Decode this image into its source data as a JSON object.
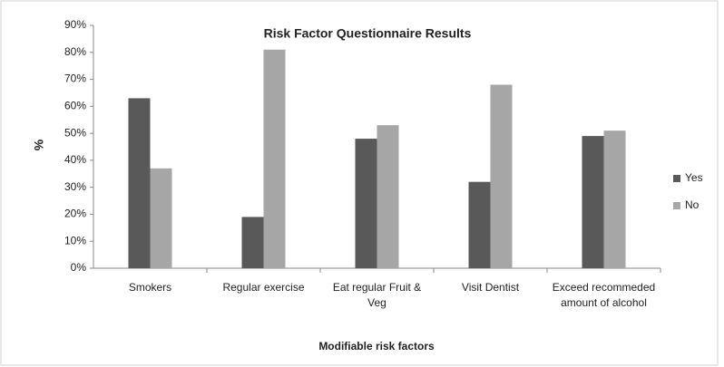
{
  "chart_data": {
    "type": "bar",
    "title": "Risk Factor Questionnaire Results",
    "x_label": "Modifiable risk factors",
    "y_label": "%",
    "categories": [
      "Smokers",
      "Regular exercise",
      "Eat regular Fruit & Veg",
      "Visit Dentist",
      "Exceed recommeded amount of alcohol"
    ],
    "series": [
      {
        "name": "Yes",
        "color": "#595959",
        "values": [
          63,
          19,
          48,
          32,
          49
        ]
      },
      {
        "name": "No",
        "color": "#a6a6a6",
        "values": [
          37,
          81,
          53,
          68,
          51
        ]
      }
    ],
    "ylim": [
      0,
      90
    ],
    "yticks": [
      {
        "value": 0,
        "label": "0%"
      },
      {
        "value": 10,
        "label": "10%"
      },
      {
        "value": 20,
        "label": "20%"
      },
      {
        "value": 30,
        "label": "30%"
      },
      {
        "value": 40,
        "label": "40%"
      },
      {
        "value": 50,
        "label": "50%"
      },
      {
        "value": 60,
        "label": "60%"
      },
      {
        "value": 70,
        "label": "70%"
      },
      {
        "value": 80,
        "label": "80%"
      },
      {
        "value": 90,
        "label": "90%"
      }
    ],
    "grid": false,
    "legend": "right"
  }
}
